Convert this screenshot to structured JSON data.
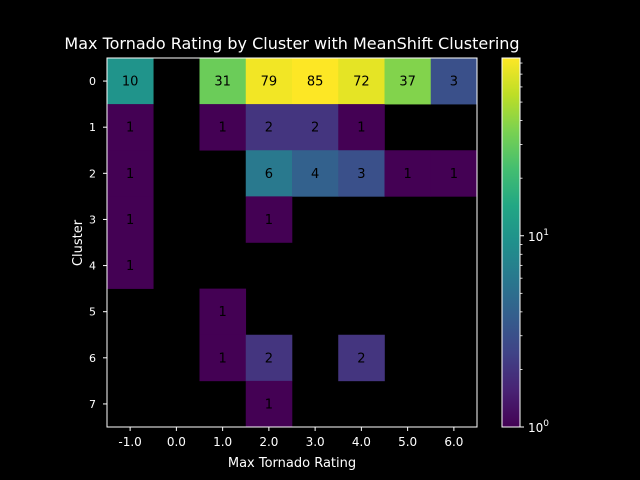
{
  "chart_data": {
    "type": "heatmap",
    "title": "Max Tornado Rating by Cluster with MeanShift Clustering",
    "xlabel": "Max Tornado Rating",
    "ylabel": "Cluster",
    "x_categories": [
      "-1.0",
      "0.0",
      "1.0",
      "2.0",
      "3.0",
      "4.0",
      "5.0",
      "6.0"
    ],
    "y_categories": [
      "0",
      "1",
      "2",
      "3",
      "4",
      "5",
      "6",
      "7"
    ],
    "values": [
      [
        10,
        null,
        31,
        79,
        85,
        72,
        37,
        3
      ],
      [
        1,
        null,
        1,
        2,
        2,
        1,
        null,
        null
      ],
      [
        1,
        null,
        null,
        6,
        4,
        3,
        1,
        1
      ],
      [
        1,
        null,
        null,
        1,
        null,
        null,
        null,
        null
      ],
      [
        1,
        null,
        null,
        null,
        null,
        null,
        null,
        null
      ],
      [
        null,
        null,
        1,
        null,
        null,
        null,
        null,
        null
      ],
      [
        null,
        null,
        1,
        2,
        null,
        2,
        null,
        null
      ],
      [
        null,
        null,
        null,
        1,
        null,
        null,
        null,
        null
      ]
    ],
    "color_scale": "log",
    "colormap": "viridis",
    "colorbar_range": [
      1,
      85
    ],
    "colorbar_ticks": [
      {
        "value": 1,
        "base": "10",
        "exp": "0"
      },
      {
        "value": 10,
        "base": "10",
        "exp": "1"
      }
    ],
    "missing_color": "#000000",
    "grid": false
  }
}
